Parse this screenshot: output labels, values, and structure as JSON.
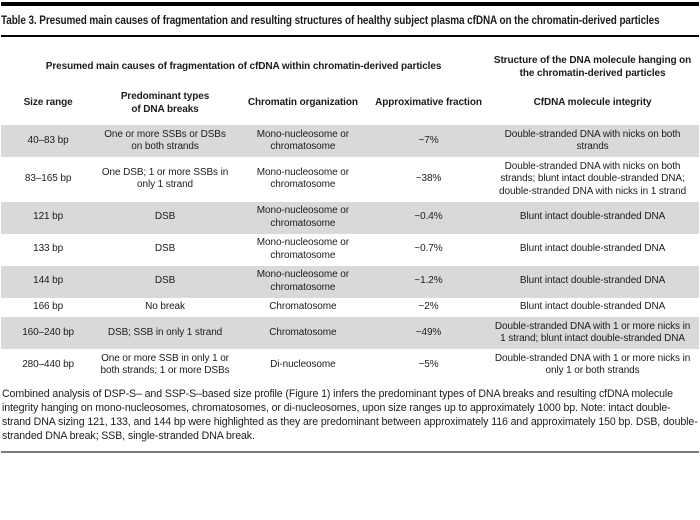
{
  "page": {
    "title": "Table 3. Presumed main causes of fragmentation and resulting structures of healthy subject plasma cfDNA on the chromatin-derived particles"
  },
  "table": {
    "group_headers": [
      {
        "label": "Presumed main causes of fragmentation of cfDNA within chromatin-derived particles"
      },
      {
        "label": "Structure of the DNA molecule hanging on the chromatin-derived particles"
      }
    ],
    "columns": [
      "Size range",
      "Predominant types of DNA breaks",
      "Chromatin organization",
      "Approximative fraction",
      "CfDNA molecule integrity"
    ],
    "rows": [
      {
        "size_range": "40–83 bp",
        "dna_breaks": "One or more SSBs or DSBs on both strands",
        "chromatin_organization": "Mono-nucleosome or chromatosome",
        "fraction": "~7%",
        "integrity": "Double-stranded DNA with nicks on both strands",
        "shaded": true
      },
      {
        "size_range": "83–165 bp",
        "dna_breaks": "One DSB; 1 or more SSBs in only 1 strand",
        "chromatin_organization": "Mono-nucleosome or chromatosome",
        "fraction": "~38%",
        "integrity": "Double-stranded DNA with nicks on both strands; blunt intact double-stranded DNA; double-stranded DNA with nicks in 1 strand",
        "shaded": false
      },
      {
        "size_range": "121 bp",
        "dna_breaks": "DSB",
        "chromatin_organization": "Mono-nucleosome or chromatosome",
        "fraction": "~0.4%",
        "integrity": "Blunt intact double-stranded DNA",
        "shaded": true
      },
      {
        "size_range": "133 bp",
        "dna_breaks": "DSB",
        "chromatin_organization": "Mono-nucleosome or chromatosome",
        "fraction": "~0.7%",
        "integrity": "Blunt intact double-stranded DNA",
        "shaded": false
      },
      {
        "size_range": "144 bp",
        "dna_breaks": "DSB",
        "chromatin_organization": "Mono-nucleosome or chromatosome",
        "fraction": "~1.2%",
        "integrity": "Blunt intact double-stranded DNA",
        "shaded": true
      },
      {
        "size_range": "166 bp",
        "dna_breaks": "No break",
        "chromatin_organization": "Chromatosome",
        "fraction": "~2%",
        "integrity": "Blunt intact double-stranded DNA",
        "shaded": false
      },
      {
        "size_range": "160–240 bp",
        "dna_breaks": "DSB; SSB in only 1 strand",
        "chromatin_organization": "Chromatosome",
        "fraction": "~49%",
        "integrity": "Double-stranded DNA with 1 or more nicks in 1 strand; blunt intact double-stranded DNA",
        "shaded": true
      },
      {
        "size_range": "280–440 bp",
        "dna_breaks": "One or more SSB in only 1 or both strands; 1 or more DSBs",
        "chromatin_organization": "Di-nucleosome",
        "fraction": "~5%",
        "integrity": "Double-stranded DNA with 1 or more nicks in only 1 or both strands",
        "shaded": false
      }
    ],
    "footnote": "Combined analysis of DSP-S– and SSP-S–based size profile (Figure 1) infers the predominant types of DNA breaks and resulting cfDNA molecule integrity hanging on mono-nucleosomes, chromatosomes, or di-nucleosomes, upon size ranges up to approximately 1000 bp. Note: intact double-strand DNA sizing 121, 133, and 144 bp were highlighted as they are predominant between approximately 116 and approximately 150 bp. DSB, double-stranded DNA break; SSB, single-stranded DNA break.",
    "colors": {
      "row_shade": "#d9d9d9",
      "rule_black": "#000000",
      "rule_gray": "#7a7a7a",
      "text": "#1c1c1c"
    }
  }
}
